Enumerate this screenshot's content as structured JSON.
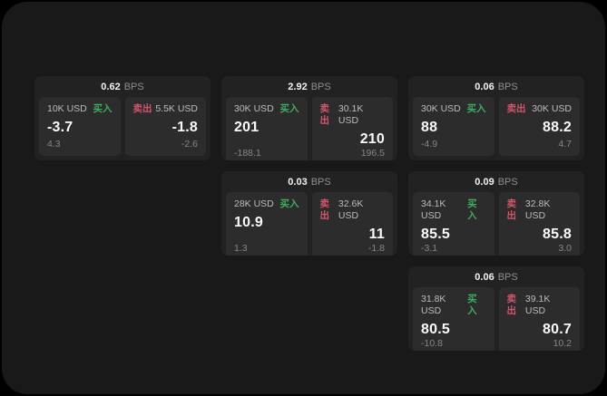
{
  "labels": {
    "bps_unit": "BPS",
    "buy": "买入",
    "sell": "卖出"
  },
  "colors": {
    "page_background": "#000000",
    "surface": "#191919",
    "card": "#222222",
    "panel": "#2c2c2c",
    "buy_green": "#3fae5c",
    "sell_red": "#d4556a"
  },
  "cards": [
    {
      "bps": "0.62",
      "buy": {
        "amount": "10K USD",
        "price": "-3.7",
        "sub": "4.3"
      },
      "sell": {
        "amount": "5.5K USD",
        "price": "-1.8",
        "sub": "-2.6"
      }
    },
    {
      "bps": "2.92",
      "buy": {
        "amount": "30K USD",
        "price": "201",
        "sub": "-188.1"
      },
      "sell": {
        "amount": "30.1K USD",
        "price": "210",
        "sub": "196.5"
      }
    },
    {
      "bps": "0.06",
      "buy": {
        "amount": "30K USD",
        "price": "88",
        "sub": "-4.9"
      },
      "sell": {
        "amount": "30K USD",
        "price": "88.2",
        "sub": "4.7"
      }
    },
    {
      "bps": "0.03",
      "buy": {
        "amount": "28K USD",
        "price": "10.9",
        "sub": "1.3"
      },
      "sell": {
        "amount": "32.6K USD",
        "price": "11",
        "sub": "-1.8"
      }
    },
    {
      "bps": "0.09",
      "buy": {
        "amount": "34.1K USD",
        "price": "85.5",
        "sub": "-3.1"
      },
      "sell": {
        "amount": "32.8K USD",
        "price": "85.8",
        "sub": "3.0"
      }
    },
    {
      "bps": "0.06",
      "buy": {
        "amount": "31.8K USD",
        "price": "80.5",
        "sub": "-10.8"
      },
      "sell": {
        "amount": "39.1K USD",
        "price": "80.7",
        "sub": "10.2"
      }
    }
  ]
}
